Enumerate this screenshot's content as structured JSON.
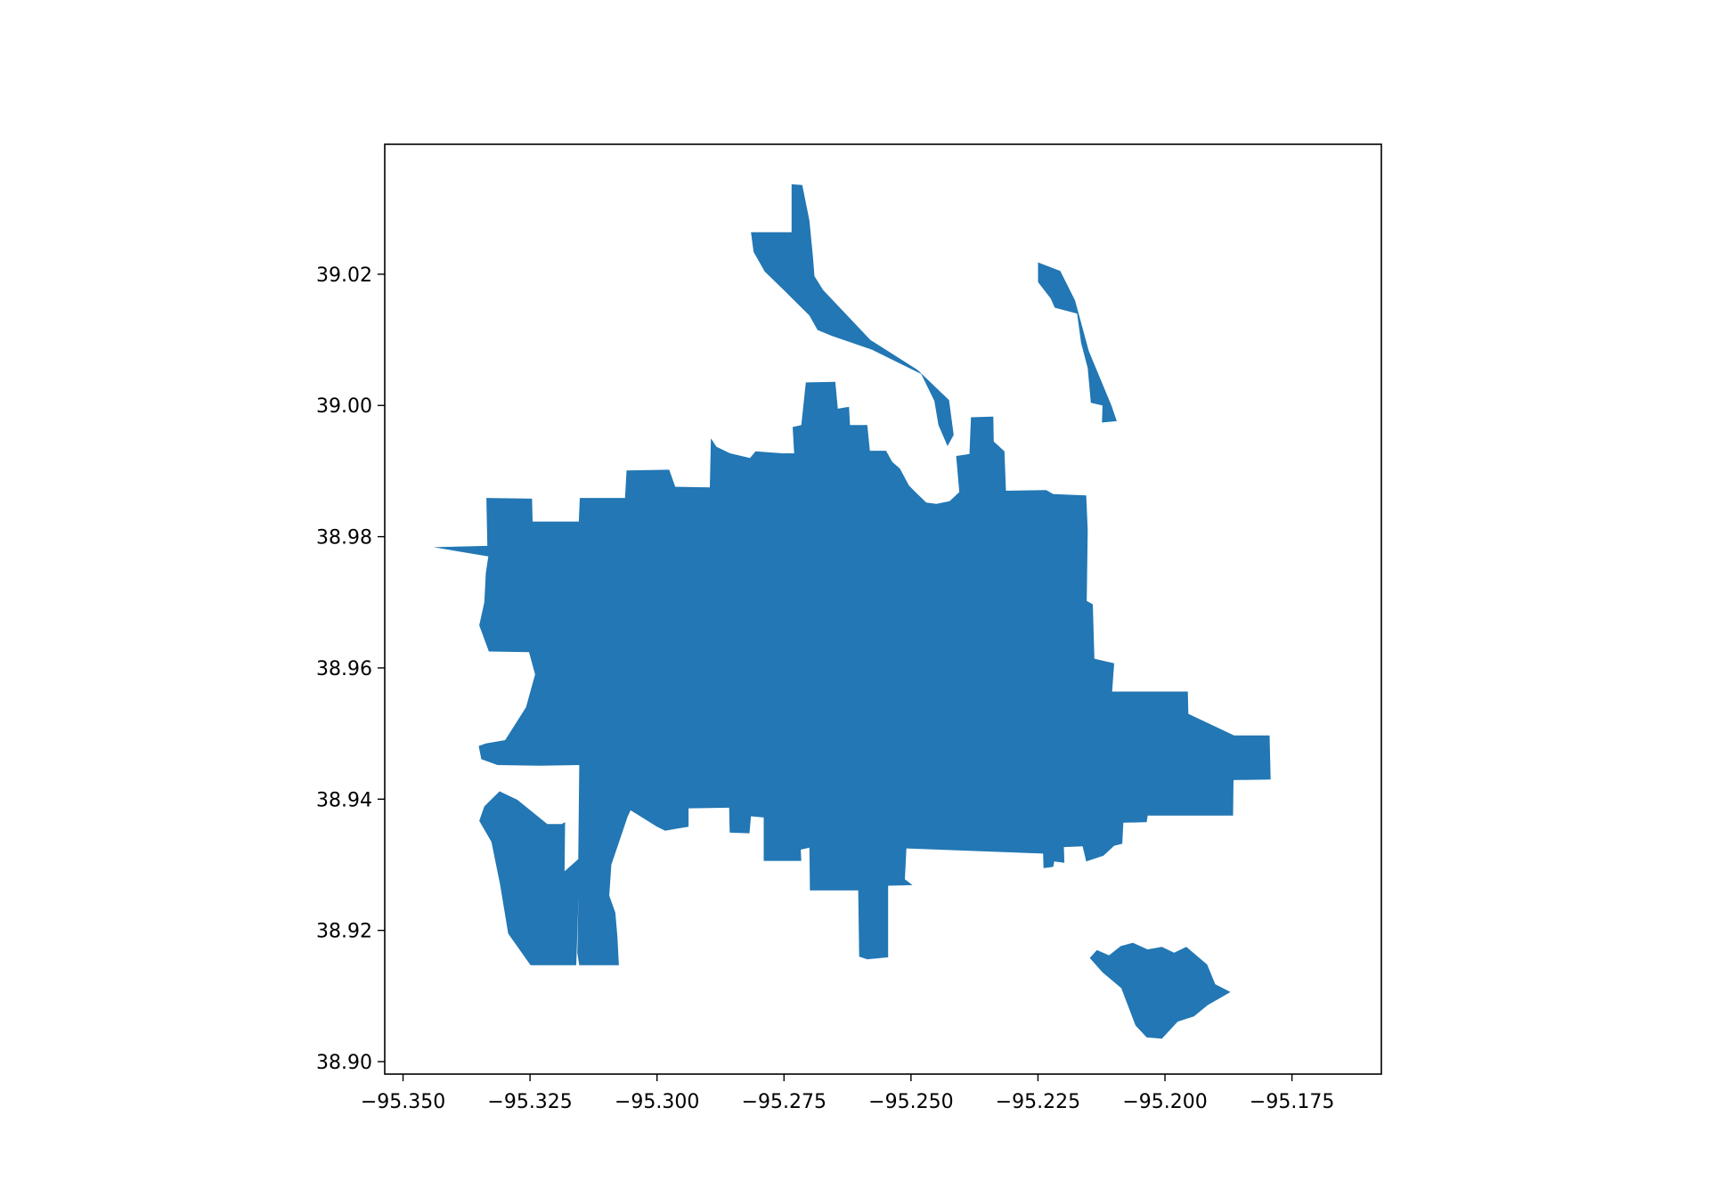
{
  "chart_data": {
    "type": "map",
    "title": "",
    "xlabel": "",
    "ylabel": "",
    "xlim": [
      -95.3536,
      -95.1574
    ],
    "ylim": [
      38.8981,
      39.0398
    ],
    "xticks": [
      -95.35,
      -95.325,
      -95.3,
      -95.275,
      -95.25,
      -95.225,
      -95.2,
      -95.175
    ],
    "xtick_labels": [
      "−95.350",
      "−95.325",
      "−95.300",
      "−95.275",
      "−95.250",
      "−95.225",
      "−95.200",
      "−95.175"
    ],
    "yticks": [
      38.9,
      38.92,
      38.94,
      38.96,
      38.98,
      39.0,
      39.02
    ],
    "ytick_labels": [
      "38.90",
      "38.92",
      "38.94",
      "38.96",
      "38.98",
      "39.00",
      "39.02"
    ],
    "grid": false,
    "regions": [
      {
        "name": "main",
        "color": "#2277b4",
        "coordinates": [
          [
            -95.344,
            38.9784
          ],
          [
            -95.3334,
            38.9786
          ],
          [
            -95.3336,
            38.9859
          ],
          [
            -95.3246,
            38.9858
          ],
          [
            -95.3245,
            38.9823
          ],
          [
            -95.3154,
            38.9823
          ],
          [
            -95.3152,
            38.9859
          ],
          [
            -95.3063,
            38.9859
          ],
          [
            -95.306,
            38.9901
          ],
          [
            -95.2976,
            38.9902
          ],
          [
            -95.2964,
            38.9876
          ],
          [
            -95.2896,
            38.9875
          ],
          [
            -95.2894,
            38.995
          ],
          [
            -95.2883,
            38.9937
          ],
          [
            -95.2856,
            38.9927
          ],
          [
            -95.2817,
            38.992
          ],
          [
            -95.2806,
            38.993
          ],
          [
            -95.2753,
            38.9927
          ],
          [
            -95.273,
            38.9927
          ],
          [
            -95.2733,
            38.9967
          ],
          [
            -95.2716,
            38.997
          ],
          [
            -95.2707,
            39.0035
          ],
          [
            -95.2649,
            39.0036
          ],
          [
            -95.2644,
            38.9995
          ],
          [
            -95.2622,
            38.9998
          ],
          [
            -95.262,
            38.997
          ],
          [
            -95.2586,
            38.997
          ],
          [
            -95.2581,
            38.9931
          ],
          [
            -95.2549,
            38.9931
          ],
          [
            -95.2537,
            38.9914
          ],
          [
            -95.2522,
            38.9904
          ],
          [
            -95.2504,
            38.9878
          ],
          [
            -95.249,
            38.9867
          ],
          [
            -95.247,
            38.9852
          ],
          [
            -95.245,
            38.985
          ],
          [
            -95.2424,
            38.9854
          ],
          [
            -95.2405,
            38.9868
          ],
          [
            -95.2411,
            38.9923
          ],
          [
            -95.2385,
            38.9926
          ],
          [
            -95.2382,
            38.9982
          ],
          [
            -95.2338,
            38.9983
          ],
          [
            -95.2337,
            38.9945
          ],
          [
            -95.2316,
            38.993
          ],
          [
            -95.2313,
            38.987
          ],
          [
            -95.2234,
            38.9871
          ],
          [
            -95.222,
            38.9865
          ],
          [
            -95.2155,
            38.9863
          ],
          [
            -95.2152,
            38.981
          ],
          [
            -95.2154,
            38.9702
          ],
          [
            -95.2142,
            38.9697
          ],
          [
            -95.2139,
            38.9614
          ],
          [
            -95.21,
            38.9607
          ],
          [
            -95.2104,
            38.9564
          ],
          [
            -95.1955,
            38.9564
          ],
          [
            -95.1954,
            38.953
          ],
          [
            -95.1864,
            38.9497
          ],
          [
            -95.1794,
            38.9497
          ],
          [
            -95.1792,
            38.943
          ],
          [
            -95.1865,
            38.9429
          ],
          [
            -95.1866,
            38.9375
          ],
          [
            -95.2034,
            38.9375
          ],
          [
            -95.2036,
            38.9365
          ],
          [
            -95.2082,
            38.9364
          ],
          [
            -95.2084,
            38.9332
          ],
          [
            -95.21,
            38.9329
          ],
          [
            -95.2121,
            38.9314
          ],
          [
            -95.2155,
            38.9305
          ],
          [
            -95.2162,
            38.9328
          ],
          [
            -95.2199,
            38.9327
          ],
          [
            -95.2198,
            38.9303
          ],
          [
            -95.2218,
            38.9305
          ],
          [
            -95.222,
            38.9297
          ],
          [
            -95.2239,
            38.9295
          ],
          [
            -95.224,
            38.9317
          ],
          [
            -95.2509,
            38.9325
          ],
          [
            -95.2512,
            38.9278
          ],
          [
            -95.2497,
            38.9269
          ],
          [
            -95.2545,
            38.9268
          ],
          [
            -95.2545,
            38.9159
          ],
          [
            -95.2586,
            38.9156
          ],
          [
            -95.2602,
            38.916
          ],
          [
            -95.2604,
            38.9261
          ],
          [
            -95.2699,
            38.9261
          ],
          [
            -95.27,
            38.9326
          ],
          [
            -95.2717,
            38.9323
          ],
          [
            -95.2716,
            38.9306
          ],
          [
            -95.279,
            38.9306
          ],
          [
            -95.279,
            38.9372
          ],
          [
            -95.2815,
            38.9374
          ],
          [
            -95.2818,
            38.9348
          ],
          [
            -95.2857,
            38.9349
          ],
          [
            -95.2858,
            38.9387
          ],
          [
            -95.2938,
            38.9386
          ],
          [
            -95.2938,
            38.9358
          ],
          [
            -95.2984,
            38.9352
          ],
          [
            -95.3,
            38.9358
          ],
          [
            -95.3052,
            38.9383
          ],
          [
            -95.3058,
            38.9373
          ],
          [
            -95.309,
            38.93
          ],
          [
            -95.3094,
            38.9253
          ],
          [
            -95.3082,
            38.9227
          ],
          [
            -95.3078,
            38.9191
          ],
          [
            -95.3075,
            38.9147
          ],
          [
            -95.3153,
            38.9147
          ],
          [
            -95.3157,
            38.9166
          ],
          [
            -95.3155,
            38.924
          ],
          [
            -95.3155,
            38.9312
          ],
          [
            -95.3153,
            38.9452
          ],
          [
            -95.3232,
            38.9451
          ],
          [
            -95.3314,
            38.9452
          ],
          [
            -95.3346,
            38.9461
          ],
          [
            -95.3351,
            38.9481
          ],
          [
            -95.3337,
            38.9485
          ],
          [
            -95.3299,
            38.949
          ],
          [
            -95.3258,
            38.954
          ],
          [
            -95.324,
            38.959
          ],
          [
            -95.3252,
            38.9624
          ],
          [
            -95.3331,
            38.9625
          ],
          [
            -95.335,
            38.9665
          ],
          [
            -95.334,
            38.97
          ],
          [
            -95.3337,
            38.9745
          ],
          [
            -95.3332,
            38.977
          ]
        ]
      },
      {
        "name": "north-river-strip",
        "color": "#2277b4",
        "coordinates": [
          [
            -95.2815,
            39.0264
          ],
          [
            -95.2735,
            39.0264
          ],
          [
            -95.2735,
            39.0337
          ],
          [
            -95.2714,
            39.0336
          ],
          [
            -95.27,
            39.0282
          ],
          [
            -95.2693,
            39.0226
          ],
          [
            -95.269,
            39.0197
          ],
          [
            -95.2673,
            39.0176
          ],
          [
            -95.258,
            39.01
          ],
          [
            -95.2487,
            39.0054
          ],
          [
            -95.2425,
            39.0008
          ],
          [
            -95.2416,
            38.9955
          ],
          [
            -95.2428,
            38.9938
          ],
          [
            -95.2446,
            38.997
          ],
          [
            -95.2454,
            39.0007
          ],
          [
            -95.248,
            39.0048
          ],
          [
            -95.2577,
            39.0085
          ],
          [
            -95.2656,
            39.0106
          ],
          [
            -95.2684,
            39.0115
          ],
          [
            -95.27,
            39.0137
          ],
          [
            -95.2748,
            39.0174
          ],
          [
            -95.2788,
            39.0204
          ],
          [
            -95.281,
            39.0234
          ]
        ]
      },
      {
        "name": "northeast-strip",
        "color": "#2277b4",
        "coordinates": [
          [
            -95.225,
            39.0218
          ],
          [
            -95.2206,
            39.0205
          ],
          [
            -95.2177,
            39.016
          ],
          [
            -95.215,
            39.0083
          ],
          [
            -95.2105,
            38.9999
          ],
          [
            -95.2095,
            38.9976
          ],
          [
            -95.2124,
            38.9974
          ],
          [
            -95.2123,
            39.0
          ],
          [
            -95.2146,
            39.0004
          ],
          [
            -95.2152,
            39.0057
          ],
          [
            -95.2165,
            39.0095
          ],
          [
            -95.2173,
            39.014
          ],
          [
            -95.2217,
            39.0149
          ],
          [
            -95.2225,
            39.0163
          ],
          [
            -95.225,
            39.0188
          ]
        ]
      },
      {
        "name": "southwest-strip",
        "color": "#2277b4",
        "coordinates": [
          [
            -95.335,
            38.9367
          ],
          [
            -95.334,
            38.9389
          ],
          [
            -95.331,
            38.9412
          ],
          [
            -95.3275,
            38.9399
          ],
          [
            -95.3216,
            38.9362
          ],
          [
            -95.3188,
            38.9362
          ],
          [
            -95.3181,
            38.9365
          ],
          [
            -95.3182,
            38.929
          ],
          [
            -95.3153,
            38.931
          ],
          [
            -95.3155,
            38.924
          ],
          [
            -95.3159,
            38.9147
          ],
          [
            -95.3249,
            38.9147
          ],
          [
            -95.3293,
            38.9195
          ],
          [
            -95.3309,
            38.927
          ],
          [
            -95.3326,
            38.9335
          ]
        ]
      },
      {
        "name": "southeast-parcel",
        "color": "#2277b4",
        "coordinates": [
          [
            -95.2148,
            38.9158
          ],
          [
            -95.2123,
            38.9136
          ],
          [
            -95.2086,
            38.9112
          ],
          [
            -95.2058,
            38.9055
          ],
          [
            -95.2036,
            38.9037
          ],
          [
            -95.2006,
            38.9035
          ],
          [
            -95.1975,
            38.9061
          ],
          [
            -95.1943,
            38.9069
          ],
          [
            -95.1916,
            38.9086
          ],
          [
            -95.1871,
            38.9106
          ],
          [
            -95.1901,
            38.9118
          ],
          [
            -95.1917,
            38.9148
          ],
          [
            -95.1958,
            38.9175
          ],
          [
            -95.1982,
            38.9166
          ],
          [
            -95.2006,
            38.9175
          ],
          [
            -95.2034,
            38.9171
          ],
          [
            -95.2063,
            38.9181
          ],
          [
            -95.2087,
            38.9176
          ],
          [
            -95.211,
            38.9162
          ],
          [
            -95.2134,
            38.917
          ]
        ]
      }
    ]
  }
}
